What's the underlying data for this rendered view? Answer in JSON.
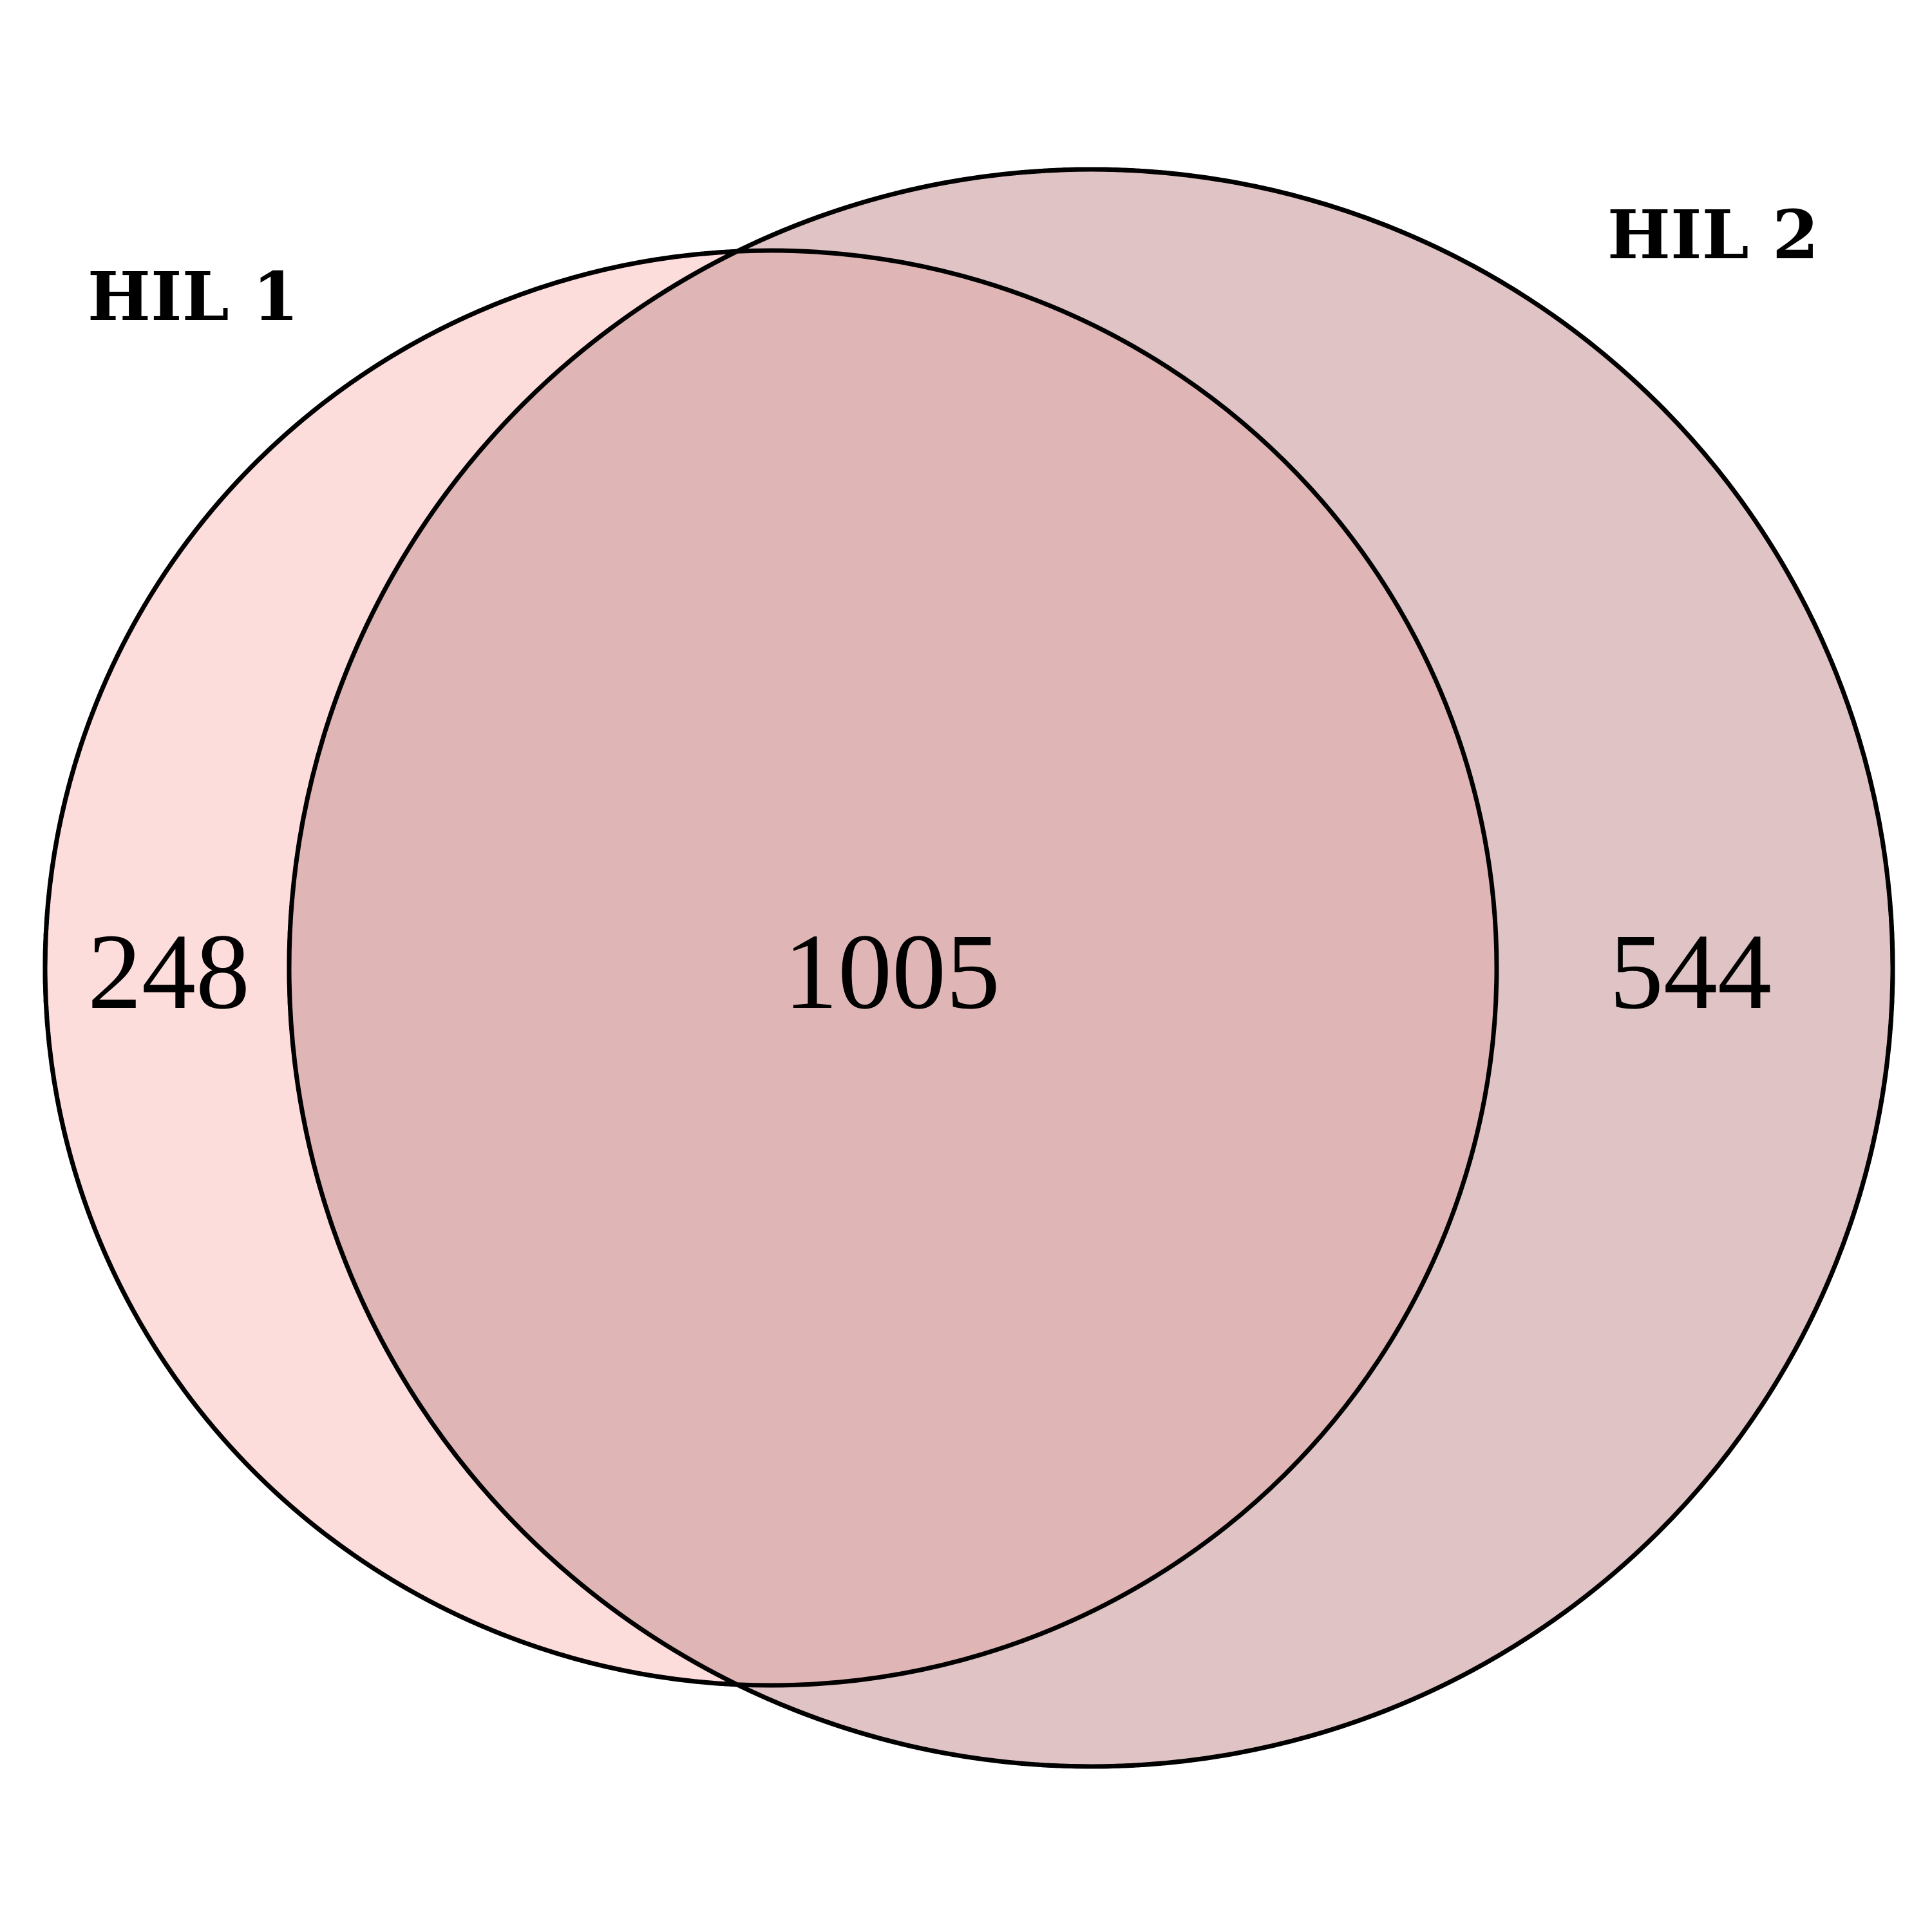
{
  "sets": [
    {
      "label": "HIL 1",
      "only_count": "248",
      "color": "#FDDCDC"
    },
    {
      "label": "HIL 2",
      "only_count": "544",
      "color": "#E0C3C5"
    }
  ],
  "intersection": {
    "count": "1005",
    "color": "#DFB6B5"
  },
  "outline_color": "#000000"
}
